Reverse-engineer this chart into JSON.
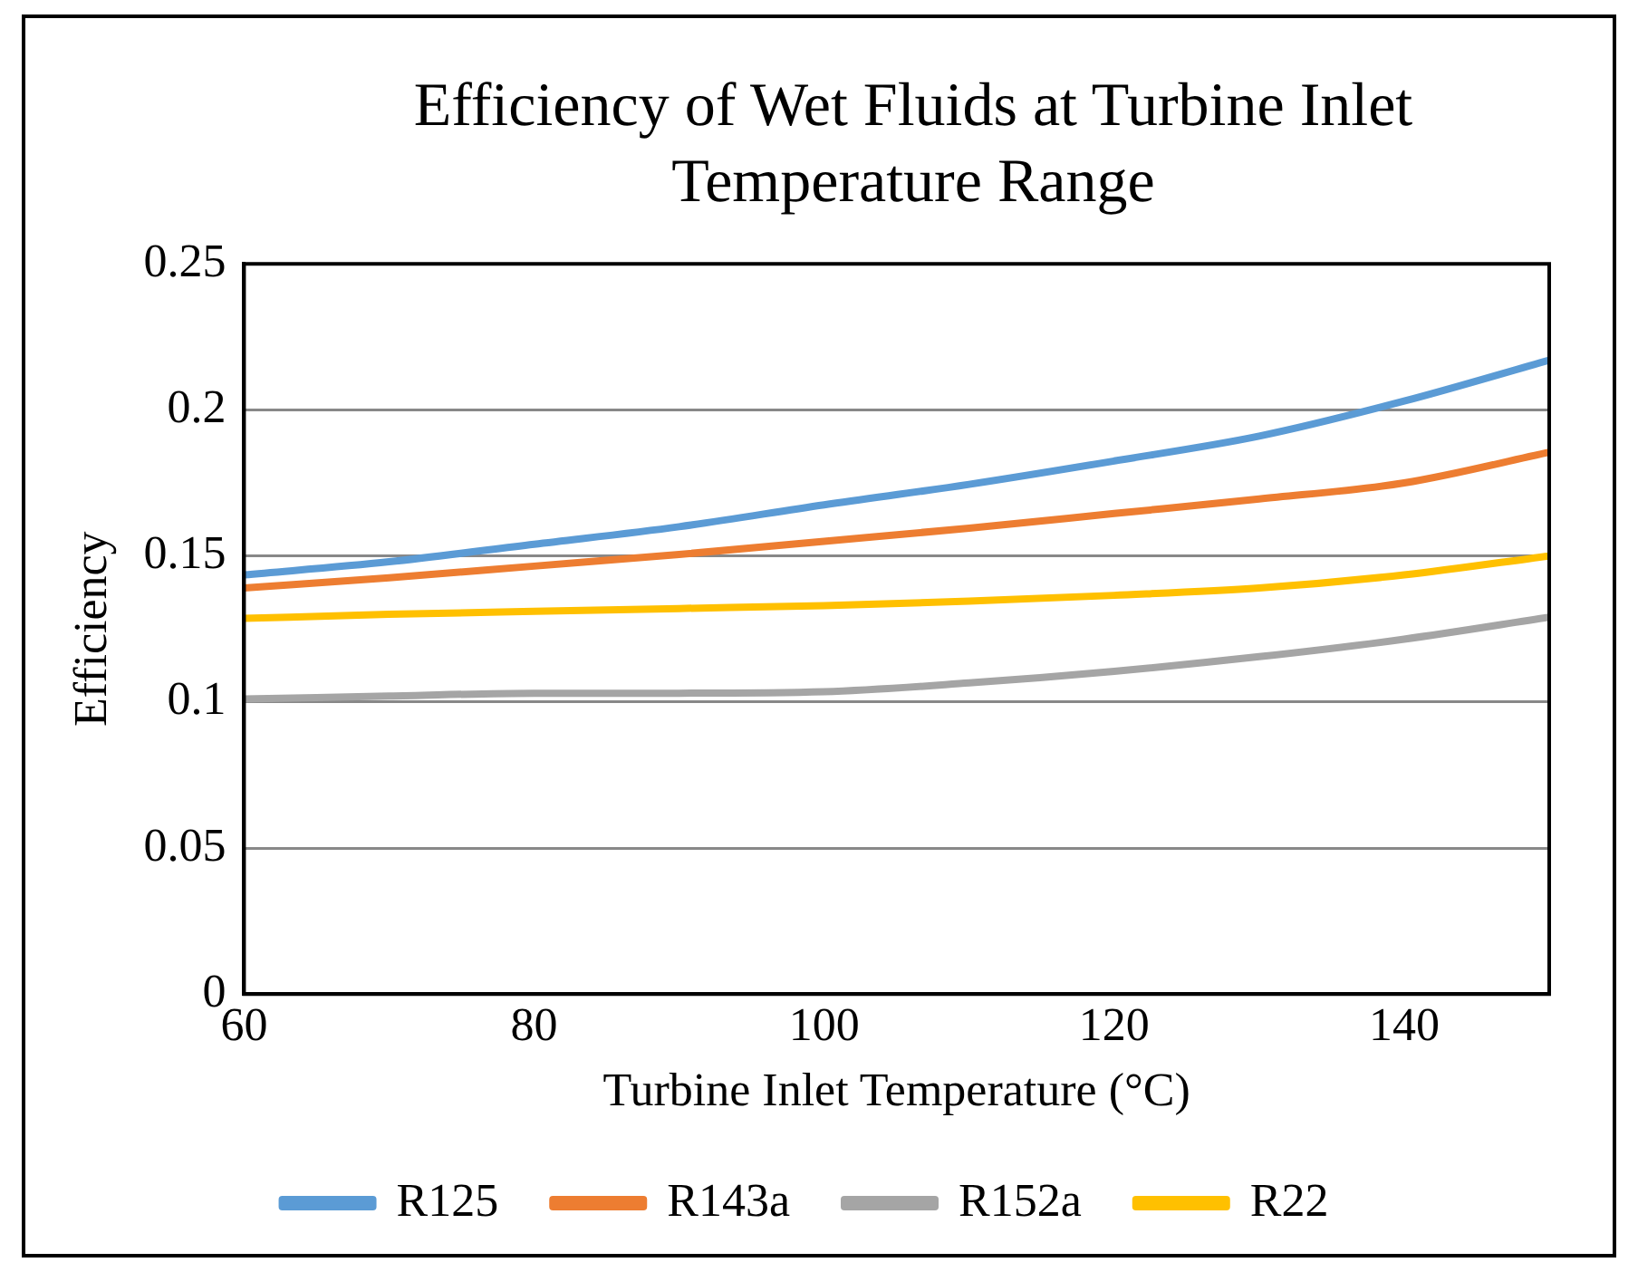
{
  "chart_data": {
    "type": "line",
    "title": "Efficiency of Wet Fluids at Turbine Inlet Temperature Range",
    "xlabel": "Turbine Inlet Temperature (°C)",
    "ylabel": "Efficiency",
    "x": [
      60,
      70,
      80,
      90,
      100,
      110,
      120,
      130,
      140,
      150
    ],
    "series": [
      {
        "name": "R125",
        "color": "#5b9bd5",
        "values": [
          0.1435,
          0.148,
          0.154,
          0.16,
          0.1675,
          0.1745,
          0.1825,
          0.191,
          0.203,
          0.217
        ]
      },
      {
        "name": "R143a",
        "color": "#ed7d31",
        "values": [
          0.139,
          0.1425,
          0.1465,
          0.1505,
          0.155,
          0.1595,
          0.1645,
          0.1695,
          0.175,
          0.1855
        ]
      },
      {
        "name": "R152a",
        "color": "#a5a5a5",
        "values": [
          0.101,
          0.102,
          0.103,
          0.103,
          0.1035,
          0.1065,
          0.1105,
          0.1155,
          0.1215,
          0.129
        ]
      },
      {
        "name": "R22",
        "color": "#ffc000",
        "values": [
          0.1286,
          0.13,
          0.131,
          0.132,
          0.133,
          0.1345,
          0.1365,
          0.139,
          0.1435,
          0.15
        ]
      }
    ],
    "xlim": [
      60,
      150
    ],
    "xticks": [
      60,
      80,
      100,
      120,
      140
    ],
    "ylim": [
      0,
      0.25
    ],
    "yticks": [
      0,
      0.05,
      0.1,
      0.15,
      0.2,
      0.25
    ],
    "grid": "y",
    "legend": "bottom",
    "marker": "none",
    "line_style": "solid"
  }
}
